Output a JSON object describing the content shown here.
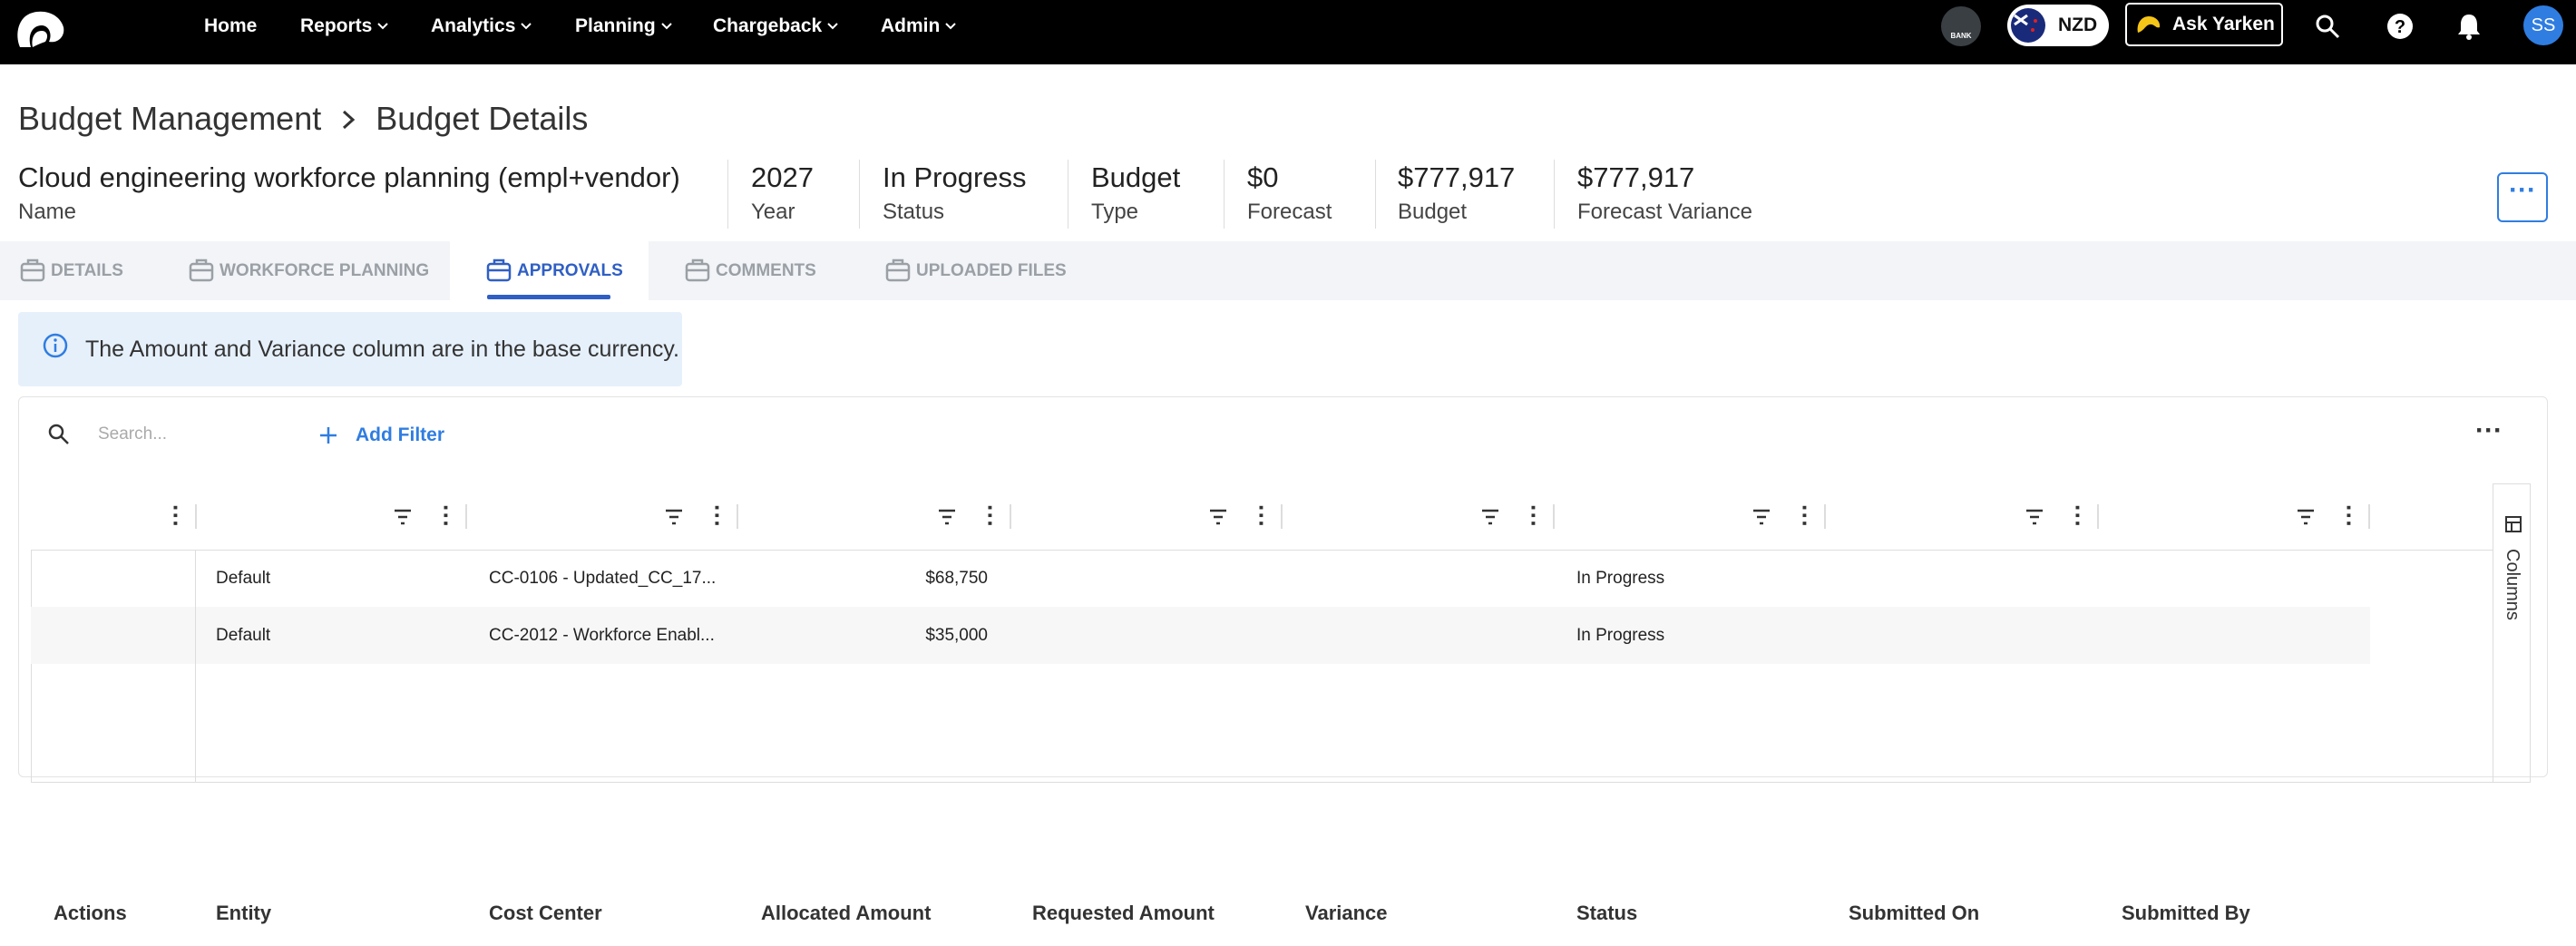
{
  "nav": {
    "items": [
      "Home",
      "Reports",
      "Analytics",
      "Planning",
      "Chargeback",
      "Admin"
    ],
    "bank_label": "BANK",
    "currency": "NZD",
    "ask_button": "Ask Yarken",
    "avatar": "SS"
  },
  "breadcrumb": [
    "Budget Management",
    "Budget Details"
  ],
  "summary": [
    {
      "value": "Cloud engineering workforce planning (empl+vendor)",
      "label": "Name"
    },
    {
      "value": "2027",
      "label": "Year"
    },
    {
      "value": "In Progress",
      "label": "Status"
    },
    {
      "value": "Budget",
      "label": "Type"
    },
    {
      "value": "$0",
      "label": "Forecast"
    },
    {
      "value": "$777,917",
      "label": "Budget"
    },
    {
      "value": "$777,917",
      "label": "Forecast Variance"
    }
  ],
  "tabs": [
    "DETAILS",
    "WORKFORCE PLANNING",
    "APPROVALS",
    "COMMENTS",
    "UPLOADED FILES"
  ],
  "active_tab": "APPROVALS",
  "info": "The Amount and Variance column are in the base currency.",
  "toolbar": {
    "search_placeholder": "Search...",
    "add_filter": "Add Filter"
  },
  "grid": {
    "columns": [
      "Actions",
      "Entity",
      "Cost Center",
      "Allocated Amount",
      "Requested Amount",
      "Variance",
      "Status",
      "Submitted On",
      "Submitted By"
    ],
    "rows": [
      {
        "entity": "Default",
        "cost_center": "CC-0106 - Updated_CC_17...",
        "allocated_amount": "$68,750",
        "status": "In Progress"
      },
      {
        "entity": "Default",
        "cost_center": "CC-2012 - Workforce Enabl...",
        "allocated_amount": "$35,000",
        "status": "In Progress"
      }
    ],
    "side_panel": "Columns"
  }
}
